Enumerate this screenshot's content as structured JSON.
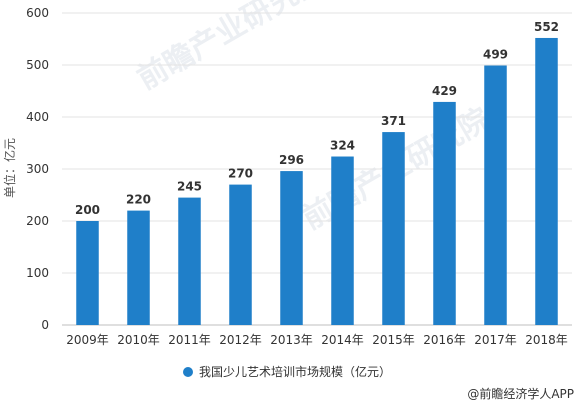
{
  "chart_data": {
    "type": "bar",
    "categories": [
      "2009年",
      "2010年",
      "2011年",
      "2012年",
      "2013年",
      "2014年",
      "2015年",
      "2016年",
      "2017年",
      "2018年"
    ],
    "series": [
      {
        "name": "我国少儿艺术培训市场规模（亿元）",
        "values": [
          200,
          220,
          245,
          270,
          296,
          324,
          371,
          429,
          499,
          552
        ]
      }
    ],
    "ylabel": "单位：亿元",
    "xlabel": "",
    "title": "",
    "ylim": [
      0,
      600
    ],
    "yticks": [
      0,
      100,
      200,
      300,
      400,
      500,
      600
    ],
    "grid": true,
    "legend": "bottom",
    "color": "#1f7fc9"
  },
  "source_text": "@前瞻经济学人APP",
  "watermark_text": "前瞻产业研究院"
}
